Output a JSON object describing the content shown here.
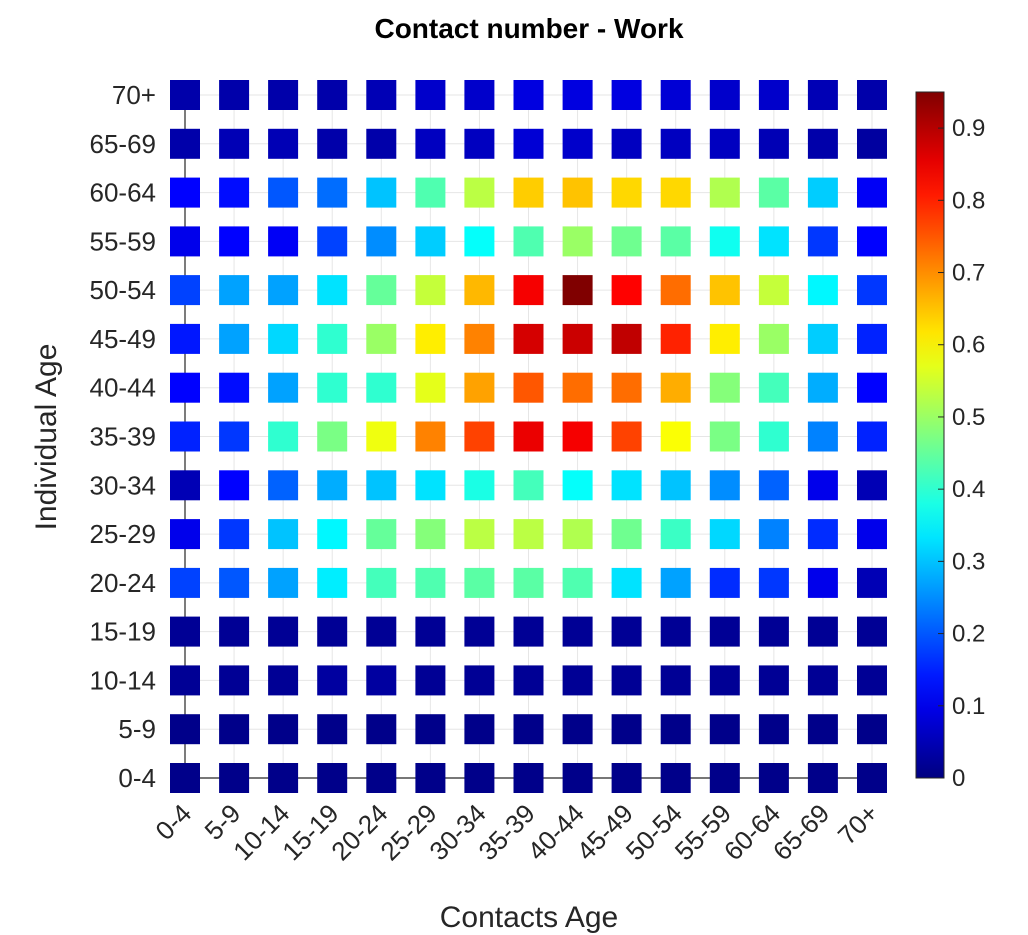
{
  "chart_data": {
    "type": "heatmap",
    "title": "Contact number - Work",
    "xlabel": "Contacts Age",
    "ylabel": "Individual Age",
    "x_categories": [
      "0-4",
      "5-9",
      "10-14",
      "15-19",
      "20-24",
      "25-29",
      "30-34",
      "35-39",
      "40-44",
      "45-49",
      "50-54",
      "55-59",
      "60-64",
      "65-69",
      "70+"
    ],
    "y_categories": [
      "0-4",
      "5-9",
      "10-14",
      "15-19",
      "20-24",
      "25-29",
      "30-34",
      "35-39",
      "40-44",
      "45-49",
      "50-54",
      "55-59",
      "60-64",
      "65-69",
      "70+"
    ],
    "values": [
      [
        0.01,
        0.01,
        0.01,
        0.01,
        0.01,
        0.01,
        0.01,
        0.01,
        0.01,
        0.01,
        0.01,
        0.01,
        0.01,
        0.01,
        0.01
      ],
      [
        0.01,
        0.01,
        0.01,
        0.01,
        0.01,
        0.01,
        0.01,
        0.01,
        0.01,
        0.01,
        0.01,
        0.01,
        0.01,
        0.01,
        0.01
      ],
      [
        0.02,
        0.02,
        0.02,
        0.03,
        0.03,
        0.02,
        0.02,
        0.02,
        0.02,
        0.02,
        0.02,
        0.02,
        0.02,
        0.02,
        0.02
      ],
      [
        0.02,
        0.02,
        0.02,
        0.02,
        0.02,
        0.02,
        0.02,
        0.02,
        0.02,
        0.02,
        0.02,
        0.02,
        0.02,
        0.02,
        0.02
      ],
      [
        0.18,
        0.2,
        0.27,
        0.34,
        0.42,
        0.43,
        0.44,
        0.44,
        0.43,
        0.33,
        0.27,
        0.16,
        0.17,
        0.1,
        0.05
      ],
      [
        0.1,
        0.17,
        0.3,
        0.35,
        0.45,
        0.48,
        0.53,
        0.53,
        0.52,
        0.46,
        0.41,
        0.32,
        0.24,
        0.16,
        0.1
      ],
      [
        0.05,
        0.12,
        0.21,
        0.28,
        0.3,
        0.33,
        0.38,
        0.42,
        0.36,
        0.33,
        0.3,
        0.25,
        0.21,
        0.1,
        0.05
      ],
      [
        0.15,
        0.17,
        0.4,
        0.47,
        0.58,
        0.71,
        0.77,
        0.85,
        0.84,
        0.77,
        0.59,
        0.47,
        0.4,
        0.24,
        0.15
      ],
      [
        0.12,
        0.13,
        0.27,
        0.4,
        0.4,
        0.57,
        0.68,
        0.75,
        0.73,
        0.73,
        0.67,
        0.48,
        0.42,
        0.28,
        0.12
      ],
      [
        0.14,
        0.27,
        0.32,
        0.4,
        0.5,
        0.61,
        0.71,
        0.87,
        0.88,
        0.89,
        0.8,
        0.61,
        0.5,
        0.31,
        0.15
      ],
      [
        0.18,
        0.27,
        0.27,
        0.33,
        0.45,
        0.54,
        0.66,
        0.84,
        0.95,
        0.83,
        0.73,
        0.65,
        0.54,
        0.35,
        0.17
      ],
      [
        0.1,
        0.12,
        0.11,
        0.18,
        0.25,
        0.31,
        0.36,
        0.43,
        0.5,
        0.46,
        0.44,
        0.37,
        0.33,
        0.17,
        0.12
      ],
      [
        0.12,
        0.13,
        0.2,
        0.22,
        0.3,
        0.43,
        0.53,
        0.64,
        0.65,
        0.63,
        0.63,
        0.52,
        0.44,
        0.31,
        0.11
      ],
      [
        0.04,
        0.05,
        0.05,
        0.04,
        0.04,
        0.06,
        0.06,
        0.08,
        0.07,
        0.06,
        0.06,
        0.06,
        0.05,
        0.04,
        0.03
      ],
      [
        0.04,
        0.04,
        0.04,
        0.04,
        0.05,
        0.07,
        0.07,
        0.09,
        0.09,
        0.09,
        0.08,
        0.07,
        0.07,
        0.05,
        0.04
      ]
    ],
    "colormap": "jet",
    "clim": [
      0,
      0.95
    ],
    "colorbar_ticks": [
      "0",
      "0.1",
      "0.2",
      "0.3",
      "0.4",
      "0.5",
      "0.6",
      "0.7",
      "0.8",
      "0.9"
    ],
    "grid": true
  }
}
